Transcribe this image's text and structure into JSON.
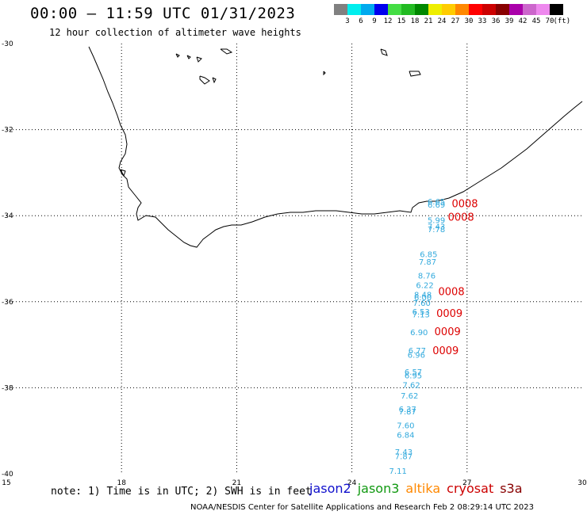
{
  "header": {
    "title": "00:00 – 11:59 UTC 01/31/2023",
    "subtitle": "12 hour collection of altimeter wave heights"
  },
  "colorbar": {
    "colors": [
      "#808080",
      "#00eeee",
      "#00aaee",
      "#0000ee",
      "#44dd44",
      "#22bb22",
      "#008800",
      "#eeee00",
      "#ffcc00",
      "#ff8800",
      "#ff0000",
      "#cc0000",
      "#880000",
      "#aa00aa",
      "#cc66cc",
      "#ee88ee",
      "#000000"
    ],
    "labels": [
      "3",
      "6",
      "9",
      "12",
      "15",
      "18",
      "21",
      "24",
      "27",
      "30",
      "33",
      "36",
      "39",
      "42",
      "45",
      "70",
      "(ft)"
    ]
  },
  "axes": {
    "lon_labels": [
      "15",
      "18",
      "21",
      "24",
      "27",
      "30"
    ],
    "lat_labels": [
      "-30",
      "-32",
      "-34",
      "-36",
      "-38",
      "-40"
    ]
  },
  "observations": {
    "color": "#33aadd",
    "values": [
      {
        "text": "6.65",
        "lon": 26.2,
        "lat": -33.74
      },
      {
        "text": "6.69",
        "lon": 26.2,
        "lat": -33.81
      },
      {
        "text": "5.99",
        "lon": 26.2,
        "lat": -34.17
      },
      {
        "text": "7.43",
        "lon": 26.2,
        "lat": -34.32
      },
      {
        "text": "7.78",
        "lon": 26.2,
        "lat": -34.38
      },
      {
        "text": "6.85",
        "lon": 26.0,
        "lat": -34.96
      },
      {
        "text": "7.87",
        "lon": 25.97,
        "lat": -35.14
      },
      {
        "text": "8.76",
        "lon": 25.95,
        "lat": -35.46
      },
      {
        "text": "6.22",
        "lon": 25.9,
        "lat": -35.68
      },
      {
        "text": "8.48",
        "lon": 25.85,
        "lat": -35.9
      },
      {
        "text": "6.00",
        "lon": 25.85,
        "lat": -35.97
      },
      {
        "text": "7.60",
        "lon": 25.82,
        "lat": -36.1
      },
      {
        "text": "6.53",
        "lon": 25.8,
        "lat": -36.3
      },
      {
        "text": "7.13",
        "lon": 25.8,
        "lat": -36.36
      },
      {
        "text": "6.90",
        "lon": 25.75,
        "lat": -36.78
      },
      {
        "text": "6.77",
        "lon": 25.7,
        "lat": -37.2
      },
      {
        "text": "6.96",
        "lon": 25.68,
        "lat": -37.3
      },
      {
        "text": "6.57",
        "lon": 25.6,
        "lat": -37.7
      },
      {
        "text": "6.95",
        "lon": 25.6,
        "lat": -37.78
      },
      {
        "text": "7.62",
        "lon": 25.55,
        "lat": -38.0
      },
      {
        "text": "7.62",
        "lon": 25.5,
        "lat": -38.25
      },
      {
        "text": "6.37",
        "lon": 25.45,
        "lat": -38.56
      },
      {
        "text": "7.87",
        "lon": 25.45,
        "lat": -38.62
      },
      {
        "text": "7.60",
        "lon": 25.4,
        "lat": -38.94
      },
      {
        "text": "6.84",
        "lon": 25.4,
        "lat": -39.16
      },
      {
        "text": "7.43",
        "lon": 25.35,
        "lat": -39.56
      },
      {
        "text": "7.87",
        "lon": 25.35,
        "lat": -39.66
      },
      {
        "text": "7.11",
        "lon": 25.2,
        "lat": -40.0
      }
    ]
  },
  "times": {
    "color": "#dd0000",
    "values": [
      {
        "text": "0008",
        "lon": 26.6,
        "lat": -33.8
      },
      {
        "text": "0008",
        "lon": 26.5,
        "lat": -34.12
      },
      {
        "text": "0008",
        "lon": 26.25,
        "lat": -35.85
      },
      {
        "text": "0009",
        "lon": 26.2,
        "lat": -36.35
      },
      {
        "text": "0009",
        "lon": 26.15,
        "lat": -36.78
      },
      {
        "text": "0009",
        "lon": 26.1,
        "lat": -37.22
      }
    ]
  },
  "footer": {
    "note": "note: 1) Time is in UTC; 2) SWH is in feet",
    "credit": "NOAA/NESDIS Center for Satellite Applications and Research   Feb  2 08:29:14 UTC 2023",
    "legend": [
      {
        "label": "jason2",
        "color": "#1010cc"
      },
      {
        "label": "jason3",
        "color": "#119911"
      },
      {
        "label": "altika",
        "color": "#ff8800"
      },
      {
        "label": "cryosat",
        "color": "#cc0000"
      },
      {
        "label": "s3a",
        "color": "#880000"
      }
    ]
  }
}
